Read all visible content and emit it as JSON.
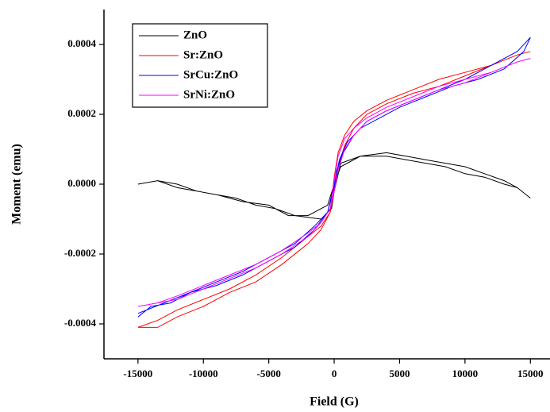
{
  "chart_data": {
    "type": "line",
    "xlabel": "Field (G)",
    "ylabel": "Moment (emu)",
    "xlim": [
      -17600,
      16500
    ],
    "xticks": [
      -15000,
      -10000,
      -5000,
      0,
      5000,
      10000,
      15000
    ],
    "ylim": [
      -0.0005,
      0.0005
    ],
    "yticks": [
      {
        "value": -0.0004,
        "label": "-0.0004"
      },
      {
        "value": -0.0002,
        "label": "-0.0002"
      },
      {
        "value": 0,
        "label": "0.0000"
      },
      {
        "value": 0.0002,
        "label": "0.0002"
      },
      {
        "value": 0.0004,
        "label": "0.0004"
      }
    ],
    "legend": "upper left",
    "series": [
      {
        "name": "ZnO",
        "color": "#000000",
        "x": [
          -15000,
          -13500,
          -12000,
          -10500,
          -9000,
          -7500,
          -6000,
          -4500,
          -3000,
          -1000,
          -200,
          0,
          500,
          2000,
          4000,
          5500,
          7000,
          8500,
          10000,
          11500,
          13000,
          14000,
          15000,
          14000,
          13000,
          11500,
          10000,
          8500,
          7000,
          5500,
          4000,
          2000,
          500,
          0,
          -500,
          -2000,
          -3500,
          -5000,
          -7000,
          -9000,
          -10500,
          -12000,
          -13500,
          -15000
        ],
        "values": [
          0,
          1e-05,
          -1e-05,
          -2e-05,
          -3e-05,
          -4e-05,
          -6e-05,
          -7e-05,
          -9e-05,
          -0.0001,
          -7e-05,
          -2e-05,
          6e-05,
          8e-05,
          9e-05,
          8e-05,
          7e-05,
          6e-05,
          5e-05,
          3e-05,
          1e-05,
          -1e-05,
          -4e-05,
          -1e-05,
          0,
          2e-05,
          3e-05,
          5e-05,
          6e-05,
          7e-05,
          8e-05,
          8e-05,
          5e-05,
          0,
          -6e-05,
          -9e-05,
          -9e-05,
          -6e-05,
          -5e-05,
          -3e-05,
          -2e-05,
          0,
          1e-05,
          0
        ]
      },
      {
        "name": "Sr:ZnO",
        "color": "#ff0000",
        "x": [
          -15000,
          -13500,
          -12000,
          -10000,
          -8000,
          -6000,
          -4000,
          -2000,
          -1000,
          -300,
          0,
          300,
          800,
          1500,
          2500,
          4000,
          6000,
          8000,
          10000,
          12000,
          14000,
          15000,
          14000,
          12000,
          10000,
          8000,
          6000,
          4000,
          2500,
          1500,
          800,
          300,
          0,
          -300,
          -1000,
          -2000,
          -4000,
          -6000,
          -8000,
          -10000,
          -12000,
          -13500,
          -15000
        ],
        "values": [
          -0.00041,
          -0.00041,
          -0.00038,
          -0.00035,
          -0.00031,
          -0.00028,
          -0.00023,
          -0.00017,
          -0.00013,
          -8e-05,
          2e-05,
          9e-05,
          0.00014,
          0.00018,
          0.00021,
          0.00024,
          0.00027,
          0.0003,
          0.00032,
          0.00034,
          0.00037,
          0.00038,
          0.00037,
          0.00034,
          0.00031,
          0.00028,
          0.00026,
          0.00023,
          0.0002,
          0.00016,
          0.00011,
          5e-05,
          -2e-05,
          -8e-05,
          -0.00012,
          -0.00015,
          -0.00021,
          -0.00026,
          -0.0003,
          -0.00033,
          -0.00036,
          -0.00039,
          -0.00041
        ]
      },
      {
        "name": "SrCu:ZnO",
        "color": "#0000ff",
        "x": [
          -15000,
          -14000,
          -12500,
          -11000,
          -9000,
          -7000,
          -5000,
          -3000,
          -1500,
          -500,
          0,
          400,
          1000,
          2000,
          3500,
          5000,
          7000,
          9000,
          11000,
          13000,
          14500,
          15000,
          14000,
          12000,
          10000,
          8000,
          6000,
          4000,
          2500,
          1500,
          700,
          200,
          0,
          -500,
          -1500,
          -3000,
          -5000,
          -7000,
          -9000,
          -11000,
          -13000,
          -15000
        ],
        "values": [
          -0.00038,
          -0.00035,
          -0.00034,
          -0.00031,
          -0.00029,
          -0.00026,
          -0.00022,
          -0.00018,
          -0.00013,
          -8e-05,
          0,
          7e-05,
          0.00012,
          0.00016,
          0.00019,
          0.00022,
          0.00025,
          0.00028,
          0.0003,
          0.00033,
          0.00038,
          0.00042,
          0.00038,
          0.00034,
          0.0003,
          0.00027,
          0.00024,
          0.00021,
          0.00018,
          0.00014,
          9e-05,
          4e-05,
          -1e-05,
          -8e-05,
          -0.00012,
          -0.00017,
          -0.00021,
          -0.00025,
          -0.00028,
          -0.00031,
          -0.00034,
          -0.00037
        ]
      },
      {
        "name": "SrNi:ZnO",
        "color": "#ff00ff",
        "x": [
          -15000,
          -13500,
          -12000,
          -10000,
          -8000,
          -6000,
          -4000,
          -2000,
          -1000,
          -300,
          0,
          300,
          800,
          1500,
          2500,
          4000,
          6000,
          8000,
          10000,
          12000,
          14000,
          15000,
          14000,
          12000,
          10000,
          8000,
          6000,
          4000,
          2500,
          1500,
          800,
          300,
          0,
          -300,
          -1000,
          -2000,
          -4000,
          -6000,
          -8000,
          -10000,
          -12000,
          -13500,
          -15000
        ],
        "values": [
          -0.00035,
          -0.00034,
          -0.00033,
          -0.0003,
          -0.00027,
          -0.00024,
          -0.0002,
          -0.00015,
          -0.00011,
          -7e-05,
          1e-05,
          8e-05,
          0.00013,
          0.00016,
          0.00019,
          0.00022,
          0.00025,
          0.00028,
          0.0003,
          0.00032,
          0.00035,
          0.00036,
          0.00035,
          0.00032,
          0.00029,
          0.00027,
          0.00024,
          0.00021,
          0.00018,
          0.00014,
          0.0001,
          4e-05,
          -2e-05,
          -7e-05,
          -0.00011,
          -0.00014,
          -0.00019,
          -0.00023,
          -0.00026,
          -0.00029,
          -0.00032,
          -0.00034,
          -0.00035
        ]
      }
    ]
  }
}
